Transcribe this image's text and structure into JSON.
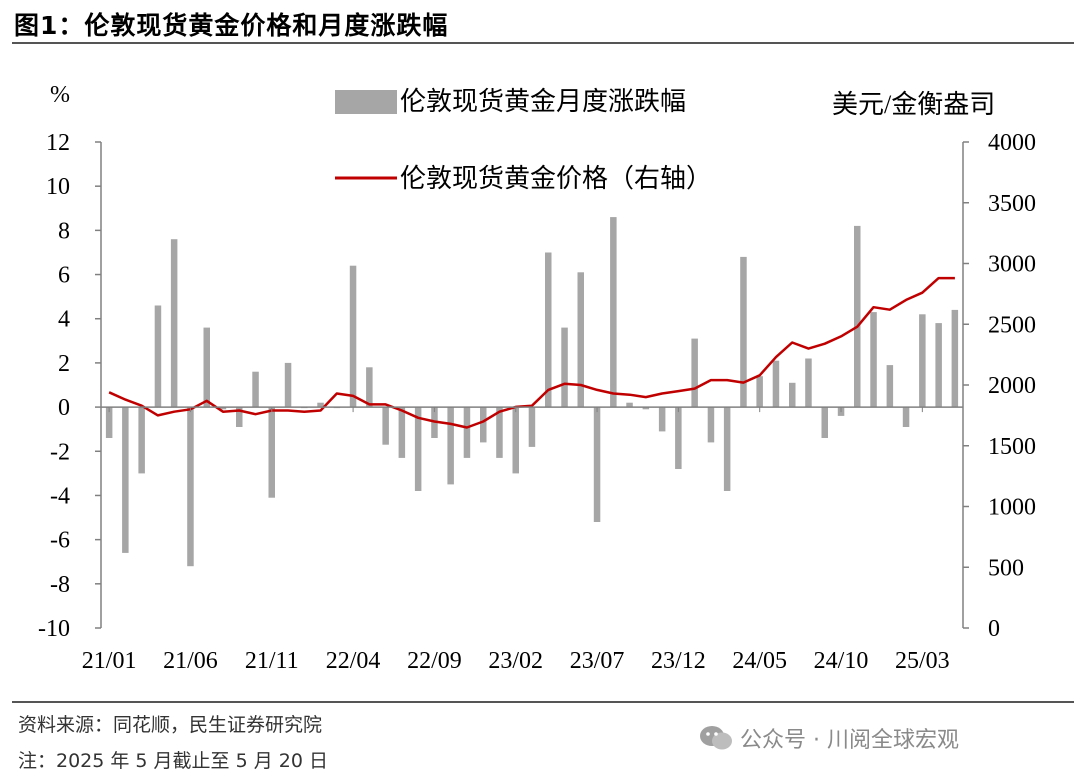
{
  "page": {
    "title": "图1：伦敦现货黄金价格和月度涨跌幅",
    "source": "资料来源：同花顺，民生证券研究院",
    "note": "注：2025 年 5 月截止至 5 月 20 日",
    "watermark": "公众号 · 川阅全球宏观",
    "watermark_icon": "wechat-icon"
  },
  "chart_data": {
    "type": "bar",
    "left_unit": "%",
    "right_unit": "美元/金衡盎司",
    "ylim_left": [
      -10,
      12
    ],
    "ylim_right": [
      0,
      4000
    ],
    "yticks_left": [
      12,
      10,
      8,
      6,
      4,
      2,
      0,
      -2,
      -4,
      -6,
      -8,
      -10
    ],
    "yticks_right": [
      4000,
      3500,
      3000,
      2500,
      2000,
      1500,
      1000,
      500,
      0
    ],
    "x_ticks": [
      "21/01",
      "21/06",
      "21/11",
      "22/04",
      "22/09",
      "23/02",
      "23/07",
      "23/12",
      "24/05",
      "24/10",
      "25/03"
    ],
    "grid": false,
    "legend_position": "top-center",
    "colors": {
      "bars": "#a6a6a6",
      "line": "#c00000",
      "axis": "#808080"
    },
    "series": [
      {
        "name": "伦敦现货黄金月度涨跌幅",
        "type": "bar",
        "axis": "left",
        "categories": [
          "21/01",
          "21/02",
          "21/03",
          "21/04",
          "21/05",
          "21/06",
          "21/07",
          "21/08",
          "21/09",
          "21/10",
          "21/11",
          "21/12",
          "22/01",
          "22/02",
          "22/03",
          "22/04",
          "22/05",
          "22/06",
          "22/07",
          "22/08",
          "22/09",
          "22/10",
          "22/11",
          "22/12",
          "23/01",
          "23/02",
          "23/03",
          "23/04",
          "23/05",
          "23/06",
          "23/07",
          "23/08",
          "23/09",
          "23/10",
          "23/11",
          "23/12",
          "24/01",
          "24/02",
          "24/03",
          "24/04",
          "24/05",
          "24/06",
          "24/07",
          "24/08",
          "24/09",
          "24/10",
          "24/11",
          "24/12",
          "25/01",
          "25/02",
          "25/03",
          "25/04",
          "25/05"
        ],
        "values": [
          -1.4,
          -6.6,
          -3.0,
          4.6,
          7.6,
          -7.2,
          3.6,
          -0.1,
          -0.9,
          1.6,
          -4.1,
          2.0,
          0.0,
          0.2,
          0.0,
          6.4,
          1.8,
          -1.7,
          -2.3,
          -3.8,
          -1.4,
          -3.5,
          -2.3,
          -1.6,
          -2.3,
          -3.0,
          -1.8,
          7.0,
          3.6,
          6.1,
          -5.2,
          8.6,
          0.2,
          -0.1,
          -1.1,
          -2.8,
          3.1,
          -1.6,
          -3.8,
          6.8,
          1.4,
          2.1,
          1.1,
          2.2,
          -1.4,
          -0.4,
          8.2,
          4.3,
          1.9,
          -0.9,
          4.2,
          3.8,
          4.4
        ]
      },
      {
        "name": "伦敦现货黄金价格（右轴）",
        "type": "line",
        "axis": "right",
        "x": [
          "21/01",
          "21/02",
          "21/03",
          "21/04",
          "21/05",
          "21/06",
          "21/07",
          "21/08",
          "21/09",
          "21/10",
          "21/11",
          "21/12",
          "22/01",
          "22/02",
          "22/03",
          "22/04",
          "22/05",
          "22/06",
          "22/07",
          "22/08",
          "22/09",
          "22/10",
          "22/11",
          "22/12",
          "23/01",
          "23/02",
          "23/03",
          "23/04",
          "23/05",
          "23/06",
          "23/07",
          "23/08",
          "23/09",
          "23/10",
          "23/11",
          "23/12",
          "24/01",
          "24/02",
          "24/03",
          "24/04",
          "24/05",
          "24/06",
          "24/07",
          "24/08",
          "24/09",
          "24/10",
          "24/11",
          "24/12",
          "25/01",
          "25/02",
          "25/03",
          "25/04",
          "25/05"
        ],
        "values": [
          1940,
          1880,
          1830,
          1750,
          1780,
          1800,
          1870,
          1780,
          1790,
          1760,
          1790,
          1790,
          1780,
          1790,
          1930,
          1910,
          1840,
          1840,
          1790,
          1730,
          1700,
          1680,
          1650,
          1700,
          1780,
          1820,
          1830,
          1960,
          2010,
          2000,
          1960,
          1930,
          1920,
          1900,
          1930,
          1950,
          1970,
          2040,
          2040,
          2020,
          2080,
          2230,
          2350,
          2300,
          2340,
          2400,
          2480,
          2640,
          2620,
          2700,
          2760,
          2880,
          2880
        ]
      }
    ],
    "legend": [
      "伦敦现货黄金月度涨跌幅",
      "伦敦现货黄金价格（右轴）"
    ]
  }
}
